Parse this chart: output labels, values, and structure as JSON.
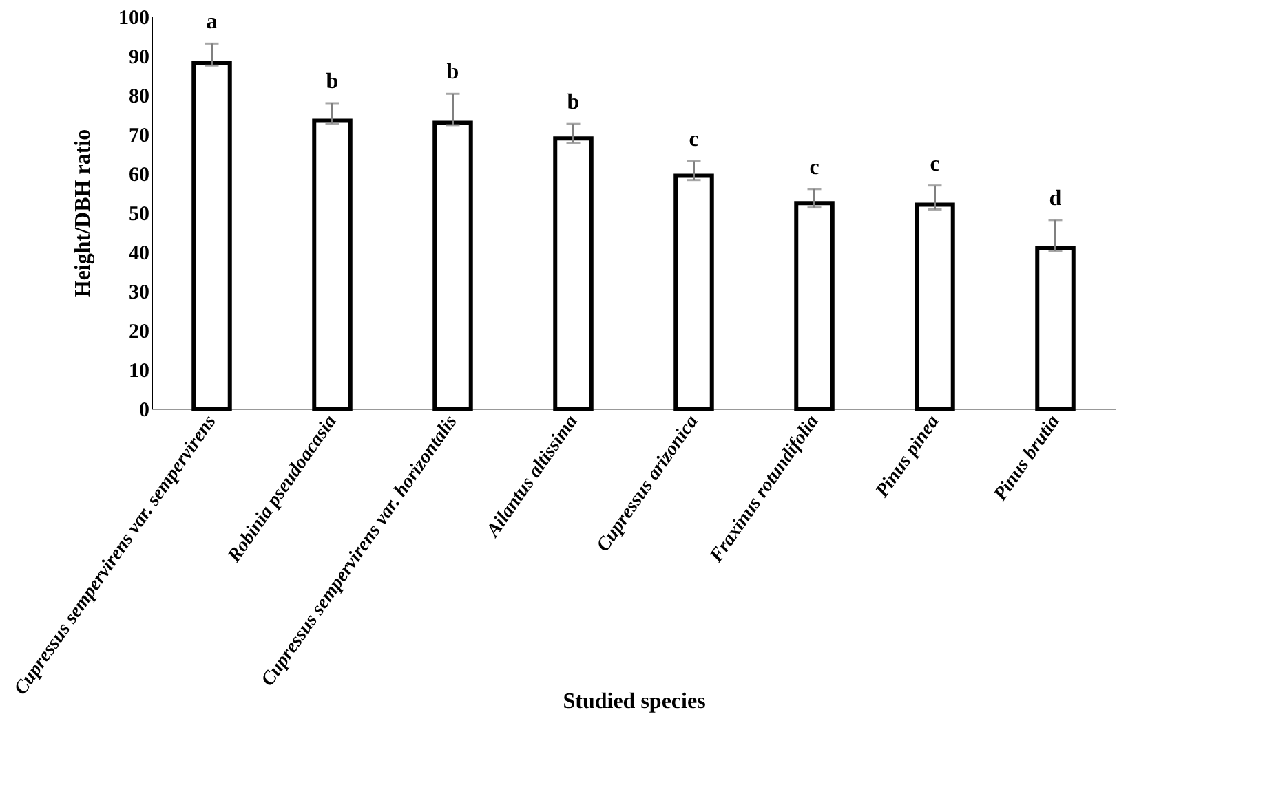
{
  "chart_data": {
    "type": "bar",
    "xlabel": "Studied species",
    "ylabel": "Height/DBH ratio",
    "categories": [
      "Cupressus sempervirens  var. sempervirens",
      "Robinia pseudoacasia",
      "Cupressus sempervirens  var. horizontalis",
      "Ailantus altissima",
      "Cupressus arizonica",
      "Fraxinus rotundifolia",
      "Pinus pinea",
      "Pinus brutia"
    ],
    "values": [
      88.2,
      73.4,
      72.9,
      68.9,
      59.4,
      52.4,
      52.0,
      41.0
    ],
    "errors": [
      [
        87.5,
        93.1
      ],
      [
        72.7,
        77.9
      ],
      [
        72.3,
        80.3
      ],
      [
        67.8,
        72.6
      ],
      [
        58.3,
        63.1
      ],
      [
        51.3,
        56.0
      ],
      [
        50.8,
        56.9
      ],
      [
        40.2,
        48.1
      ]
    ],
    "color": "#ffffff",
    "ylim": [
      0,
      100
    ],
    "yticks": [
      0,
      10,
      20,
      30,
      40,
      50,
      60,
      70,
      80,
      90,
      100
    ],
    "grid": false,
    "annotations": [
      {
        "text": "a",
        "x": "Cupressus sempervirens  var. sempervirens",
        "y": 93.1
      },
      {
        "text": "b",
        "x": "Robinia pseudoacasia",
        "y": 77.9
      },
      {
        "text": "b",
        "x": "Cupressus sempervirens  var. horizontalis",
        "y": 80.3
      },
      {
        "text": "b",
        "x": "Ailantus altissima",
        "y": 72.6
      },
      {
        "text": "c",
        "x": "Cupressus arizonica",
        "y": 63.1
      },
      {
        "text": "c",
        "x": "Fraxinus rotundifolia",
        "y": 56.0
      },
      {
        "text": "c",
        "x": "Pinus pinea",
        "y": 56.9
      },
      {
        "text": "d",
        "x": "Pinus brutia",
        "y": 48.1
      }
    ]
  }
}
